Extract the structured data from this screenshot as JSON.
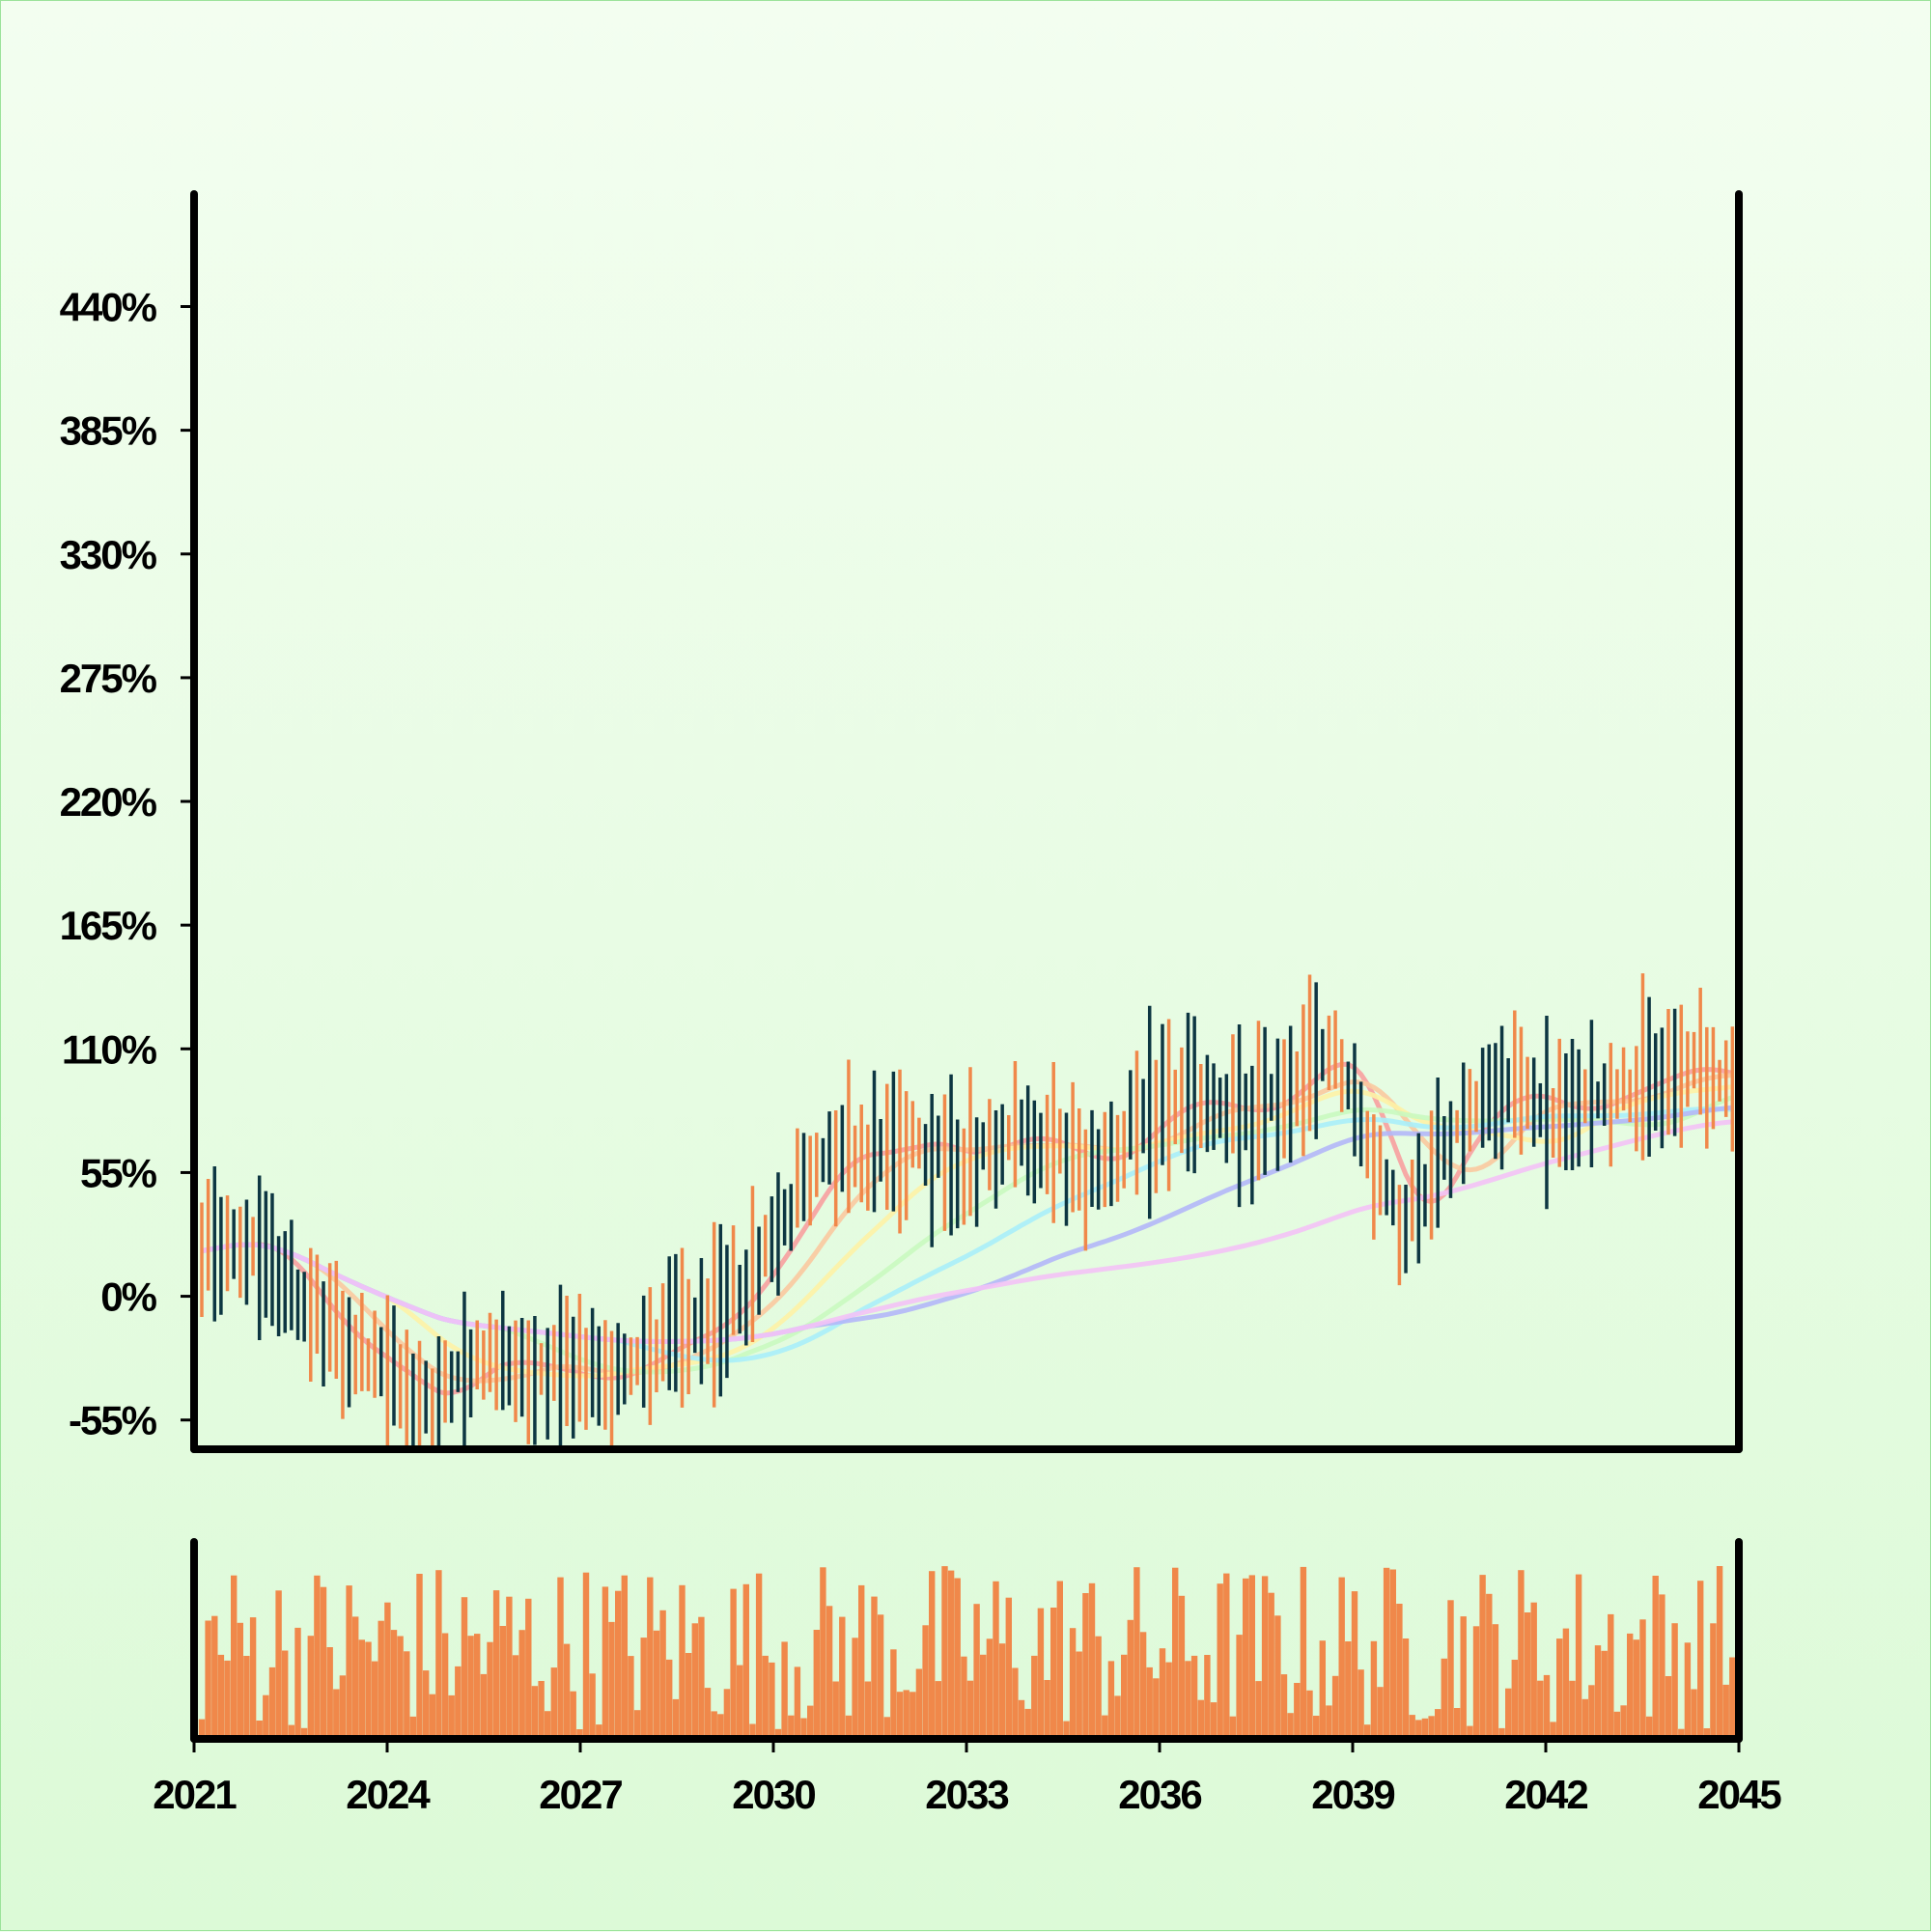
{
  "chart_data": [
    {
      "type": "ohlc",
      "x_ticks": [
        "2021",
        "2024",
        "2027",
        "2030",
        "2033",
        "2036",
        "2039",
        "2042",
        "2045"
      ],
      "x_range": [
        2021,
        2045
      ],
      "y_ticks": [
        "-55%",
        "0%",
        "55%",
        "110%",
        "165%",
        "220%",
        "275%",
        "330%",
        "385%",
        "440%"
      ],
      "y_tick_values": [
        -55,
        0,
        55,
        110,
        165,
        220,
        275,
        330,
        385,
        440
      ],
      "ylim": [
        -68,
        490
      ],
      "grid": false,
      "legend": "none",
      "bar_colors": {
        "up": "#f0884a",
        "down": "#0d3642"
      },
      "trend": {
        "x": [
          2021.1,
          2021.6,
          2022.0,
          2022.5,
          2023.0,
          2023.5,
          2024.0,
          2024.5,
          2024.8,
          2025.0,
          2025.5,
          2026.0,
          2026.5,
          2027.0,
          2027.5,
          2028.0,
          2028.5,
          2029.0,
          2029.5,
          2030.0,
          2030.4,
          2030.8,
          2031.2,
          2031.6,
          2032.0,
          2032.4,
          2032.8,
          2033.2,
          2033.6,
          2034.0,
          2034.4,
          2034.8,
          2035.2,
          2035.6,
          2036.0,
          2036.4,
          2036.8,
          2037.2,
          2037.6,
          2038.0,
          2038.3,
          2038.6,
          2038.9,
          2039.2,
          2039.5,
          2039.8,
          2040.2,
          2040.6,
          2041.0,
          2041.4,
          2041.8,
          2042.2,
          2042.6,
          2043.0,
          2043.4,
          2043.8,
          2044.2,
          2044.6,
          2044.9
        ],
        "y": [
          20,
          25,
          22,
          5,
          -15,
          -25,
          -35,
          -45,
          -48,
          -35,
          -28,
          -30,
          -33,
          -38,
          -35,
          -25,
          -18,
          -12,
          5,
          25,
          45,
          62,
          65,
          62,
          70,
          68,
          60,
          66,
          72,
          70,
          65,
          58,
          62,
          75,
          85,
          88,
          85,
          80,
          85,
          95,
          105,
          108,
          98,
          70,
          45,
          30,
          52,
          75,
          85,
          92,
          88,
          80,
          85,
          90,
          95,
          100,
          103,
          98,
          95
        ]
      },
      "ma_series": [
        {
          "color": "#f7a0a0",
          "window": 3
        },
        {
          "color": "#f9c9a0",
          "window": 6
        },
        {
          "color": "#fdf2a6",
          "window": 10
        },
        {
          "color": "#c9f9c0",
          "window": 16
        },
        {
          "color": "#a9eefa",
          "window": 22
        },
        {
          "color": "#b3b7f8",
          "window": 32
        },
        {
          "color": "#f3c2f6",
          "window": 48
        }
      ]
    },
    {
      "type": "bar",
      "x_range": [
        2021,
        2045
      ],
      "series_color": "#f0884a",
      "value_range": [
        0,
        1
      ],
      "description_hidden": false
    }
  ]
}
